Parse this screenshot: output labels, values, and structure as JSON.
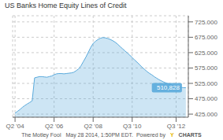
{
  "chart_data": {
    "type": "area",
    "title": "US Banks Home Equity Lines of Credit",
    "x": [
      0,
      0.5,
      1,
      1.5,
      2,
      2.5,
      3,
      3.5,
      4,
      4.5,
      5,
      5.5,
      6,
      6.5,
      7,
      7.5,
      8,
      8.5,
      9,
      9.5,
      10,
      10.5,
      11,
      11.5,
      12,
      12.5,
      13,
      13.5,
      14,
      14.5,
      15,
      15.5,
      16,
      16.5,
      17,
      17.5,
      18,
      18.5,
      19,
      19.5,
      20,
      20.5,
      21,
      21.5,
      22,
      22.5,
      23,
      23.5,
      24,
      24.5,
      25,
      25.5,
      26,
      26.5,
      27,
      27.5,
      28,
      28.5,
      29,
      29.5,
      30,
      30.5,
      31,
      31.5,
      32,
      32.5,
      33,
      33.5,
      34,
      34.5,
      35
    ],
    "values": [
      428000,
      434000,
      440000,
      447000,
      453000,
      458000,
      463000,
      468000,
      543000,
      545000,
      547000,
      547000,
      546000,
      545000,
      547000,
      549000,
      553000,
      556000,
      557000,
      557000,
      556000,
      557000,
      558000,
      559000,
      561000,
      566000,
      572000,
      582000,
      596000,
      610000,
      626000,
      642000,
      655000,
      662000,
      668000,
      672000,
      674000,
      673000,
      671000,
      668000,
      664000,
      659000,
      653000,
      645000,
      638000,
      631000,
      624000,
      617000,
      609000,
      601000,
      594000,
      586000,
      578000,
      571000,
      564000,
      558000,
      553000,
      547000,
      542000,
      537000,
      533000,
      529000,
      526000,
      523000,
      520000,
      517000,
      515000,
      513000,
      512000,
      511000,
      510828
    ],
    "color": "#5aaadc",
    "xlim": [
      -0.5,
      35.5
    ],
    "xticks": [
      {
        "value": 0,
        "label": "Q2 '04"
      },
      {
        "value": 8,
        "label": "Q2 '06"
      },
      {
        "value": 16,
        "label": "Q2 '08"
      },
      {
        "value": 24,
        "label": "Q3 '10"
      },
      {
        "value": 33,
        "label": "Q3 '12"
      }
    ],
    "ylim": [
      415000,
      745000
    ],
    "yticks": [
      {
        "value": 425000,
        "label": "425.000"
      },
      {
        "value": 475000,
        "label": "475.000"
      },
      {
        "value": 525000,
        "label": "525.000"
      },
      {
        "value": 575000,
        "label": "575.000"
      },
      {
        "value": 625000,
        "label": "625.000"
      },
      {
        "value": 675000,
        "label": "675.000"
      },
      {
        "value": 725000,
        "label": "725.000"
      }
    ],
    "grid": true,
    "annotations": [
      {
        "text": "510,828",
        "x": 35,
        "y": 510828,
        "color": "#5aaadc"
      },
      {
        "text": "The Motley Fool"
      },
      {
        "text": "May 28 2014, 1:50PM EDT.  Powered by"
      },
      {
        "text": "Y",
        "color": "#e8b800"
      },
      {
        "text": "CHARTS"
      }
    ]
  }
}
